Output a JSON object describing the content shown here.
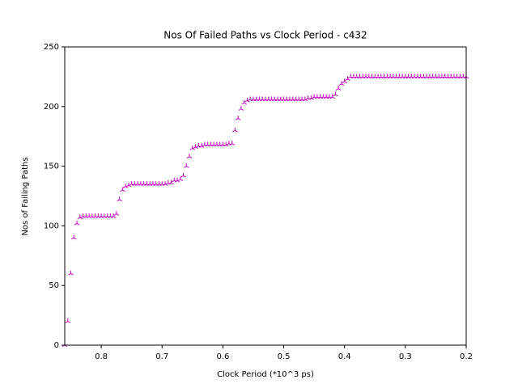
{
  "chart_data": {
    "type": "scatter",
    "title": "Nos Of Failed Paths vs Clock Period - c432",
    "x_label": "Clock Period (*10^3 ps)",
    "y_label": "Nos of Failing Paths",
    "xlim": [
      0.86,
      0.2
    ],
    "ylim": [
      0,
      250
    ],
    "xticks": [
      0.8,
      0.7,
      0.6,
      0.5,
      0.4,
      0.3,
      0.2
    ],
    "yticks": [
      0,
      50,
      100,
      150,
      200,
      250
    ],
    "grid": false,
    "color": "#bf00bf",
    "marker": "tri_up",
    "x": [
      0.86,
      0.855,
      0.85,
      0.845,
      0.84,
      0.835,
      0.83,
      0.825,
      0.82,
      0.815,
      0.81,
      0.805,
      0.8,
      0.795,
      0.79,
      0.785,
      0.78,
      0.775,
      0.77,
      0.765,
      0.76,
      0.755,
      0.75,
      0.745,
      0.74,
      0.735,
      0.73,
      0.725,
      0.72,
      0.715,
      0.71,
      0.705,
      0.7,
      0.695,
      0.69,
      0.685,
      0.68,
      0.675,
      0.67,
      0.665,
      0.66,
      0.655,
      0.65,
      0.645,
      0.64,
      0.635,
      0.63,
      0.625,
      0.62,
      0.615,
      0.61,
      0.605,
      0.6,
      0.595,
      0.59,
      0.585,
      0.58,
      0.575,
      0.57,
      0.565,
      0.56,
      0.555,
      0.55,
      0.545,
      0.54,
      0.535,
      0.53,
      0.525,
      0.52,
      0.515,
      0.51,
      0.505,
      0.5,
      0.495,
      0.49,
      0.485,
      0.48,
      0.475,
      0.47,
      0.465,
      0.46,
      0.455,
      0.45,
      0.445,
      0.44,
      0.435,
      0.43,
      0.425,
      0.42,
      0.415,
      0.41,
      0.405,
      0.4,
      0.395,
      0.39,
      0.385,
      0.38,
      0.375,
      0.37,
      0.365,
      0.36,
      0.355,
      0.35,
      0.345,
      0.34,
      0.335,
      0.33,
      0.325,
      0.32,
      0.315,
      0.31,
      0.305,
      0.3,
      0.295,
      0.29,
      0.285,
      0.28,
      0.275,
      0.27,
      0.265,
      0.26,
      0.255,
      0.25,
      0.245,
      0.24,
      0.235,
      0.23,
      0.225,
      0.22,
      0.215,
      0.21,
      0.205,
      0.2
    ],
    "values": [
      0,
      20,
      60,
      90,
      102,
      107,
      108,
      108,
      108,
      108,
      108,
      108,
      108,
      108,
      108,
      108,
      108,
      110,
      122,
      130,
      133,
      134,
      135,
      135,
      135,
      135,
      135,
      135,
      135,
      135,
      135,
      135,
      135,
      135,
      136,
      136,
      138,
      138,
      139,
      142,
      150,
      158,
      165,
      166,
      167,
      167,
      168,
      168,
      168,
      168,
      168,
      168,
      168,
      168,
      169,
      169,
      180,
      190,
      198,
      203,
      205,
      206,
      206,
      206,
      206,
      206,
      206,
      206,
      206,
      206,
      206,
      206,
      206,
      206,
      206,
      206,
      206,
      206,
      206,
      206,
      207,
      207,
      208,
      208,
      208,
      208,
      208,
      208,
      208,
      210,
      215,
      219,
      221,
      223,
      225,
      225,
      225,
      225,
      225,
      225,
      225,
      225,
      225,
      225,
      225,
      225,
      225,
      225,
      225,
      225,
      225,
      225,
      225,
      225,
      225,
      225,
      225,
      225,
      225,
      225,
      225,
      225,
      225,
      225,
      225,
      225,
      225,
      225,
      225,
      225,
      225,
      225,
      225
    ]
  }
}
